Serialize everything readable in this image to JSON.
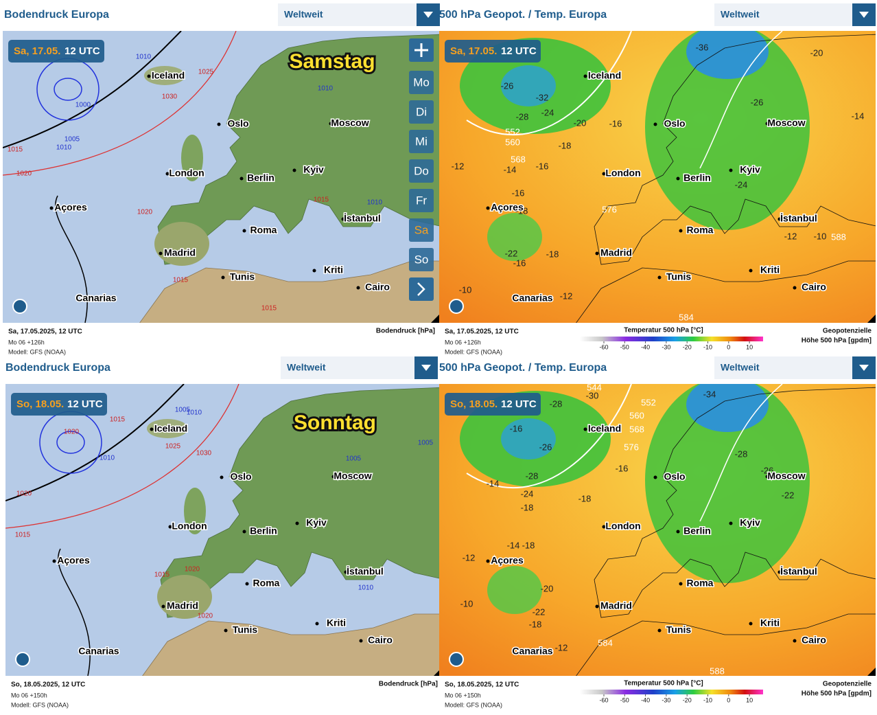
{
  "cities": [
    "Iceland",
    "Oslo",
    "Moscow",
    "London",
    "Berlin",
    "Kyiv",
    "Açores",
    "İstanbul",
    "Roma",
    "Madrid",
    "Tunis",
    "Kriti",
    "Cairo",
    "Canarias"
  ],
  "legend": {
    "title": "Temperatur 500 hPa [°C]",
    "ticks": [
      -60,
      -50,
      -40,
      -30,
      -20,
      -10,
      0,
      10
    ]
  },
  "panels": [
    {
      "title": "Bodendruck Europa",
      "dropdown": "Weltweit",
      "badge_day": "Sa, 17.05.",
      "badge_time": "12 UTC",
      "day_label": "Samstag",
      "footer_date": "Sa, 17.05.2025, 12 UTC",
      "footer_run": "Mo 06 +126h",
      "footer_model": "Modell: GFS (NOAA)",
      "parameter": [
        "Bodendruck [hPa]"
      ],
      "day_buttons": [
        "Mo",
        "Di",
        "Mi",
        "Do",
        "Fr",
        "Sa",
        "So"
      ],
      "contour_labels": [
        1010,
        1025,
        1030,
        1000,
        1005,
        1010,
        1015,
        1020,
        1020,
        1015,
        1010,
        1015,
        1015,
        1010
      ]
    },
    {
      "title": "500 hPa Geopot. / Temp. Europa",
      "dropdown": "Weltweit",
      "badge_day": "Sa, 17.05.",
      "badge_time": "12 UTC",
      "footer_date": "Sa, 17.05.2025, 12 UTC",
      "footer_run": "Mo 06 +126h",
      "footer_model": "Modell: GFS (NOAA)",
      "parameter": [
        "Geopotenzielle",
        "Höhe 500 hPa [gpdm]"
      ],
      "contour_labels": [
        -26,
        -32,
        -28,
        -24,
        -20,
        -16,
        -18,
        -14,
        -16,
        -12,
        -16,
        -18,
        -22,
        -16,
        -18,
        -10,
        -12,
        -36,
        -26,
        -24,
        -12,
        -10,
        -14,
        -20,
        552,
        560,
        568,
        576,
        584,
        588
      ]
    },
    {
      "title": "Bodendruck Europa",
      "dropdown": "Weltweit",
      "badge_day": "So, 18.05.",
      "badge_time": "12 UTC",
      "day_label": "Sonntag",
      "footer_date": "So, 18.05.2025, 12 UTC",
      "footer_run": "Mo 06 +150h",
      "footer_model": "Modell: GFS (NOAA)",
      "parameter": [
        "Bodendruck [hPa]"
      ],
      "contour_labels": [
        1015,
        1005,
        1010,
        1010,
        1020,
        1025,
        1030,
        1020,
        1015,
        1015,
        1020,
        1020,
        1010,
        1005,
        1005
      ]
    },
    {
      "title": "500 hPa Geopot. / Temp. Europa",
      "dropdown": "Weltweit",
      "badge_day": "So, 18.05.",
      "badge_time": "12 UTC",
      "footer_date": "So, 18.05.2025, 12 UTC",
      "footer_run": "Mo 06 +150h",
      "footer_model": "Modell: GFS (NOAA)",
      "parameter": [
        "Geopotenzielle",
        "Höhe 500 hPa [gpdm]"
      ],
      "contour_labels": [
        -30,
        -28,
        -26,
        -28,
        -24,
        -16,
        -14,
        -18,
        -18,
        -16,
        -34,
        -28,
        -26,
        -22,
        -20,
        -22,
        -18,
        -14,
        -18,
        -12,
        -10,
        -12,
        544,
        552,
        560,
        568,
        576,
        584,
        588
      ]
    }
  ]
}
